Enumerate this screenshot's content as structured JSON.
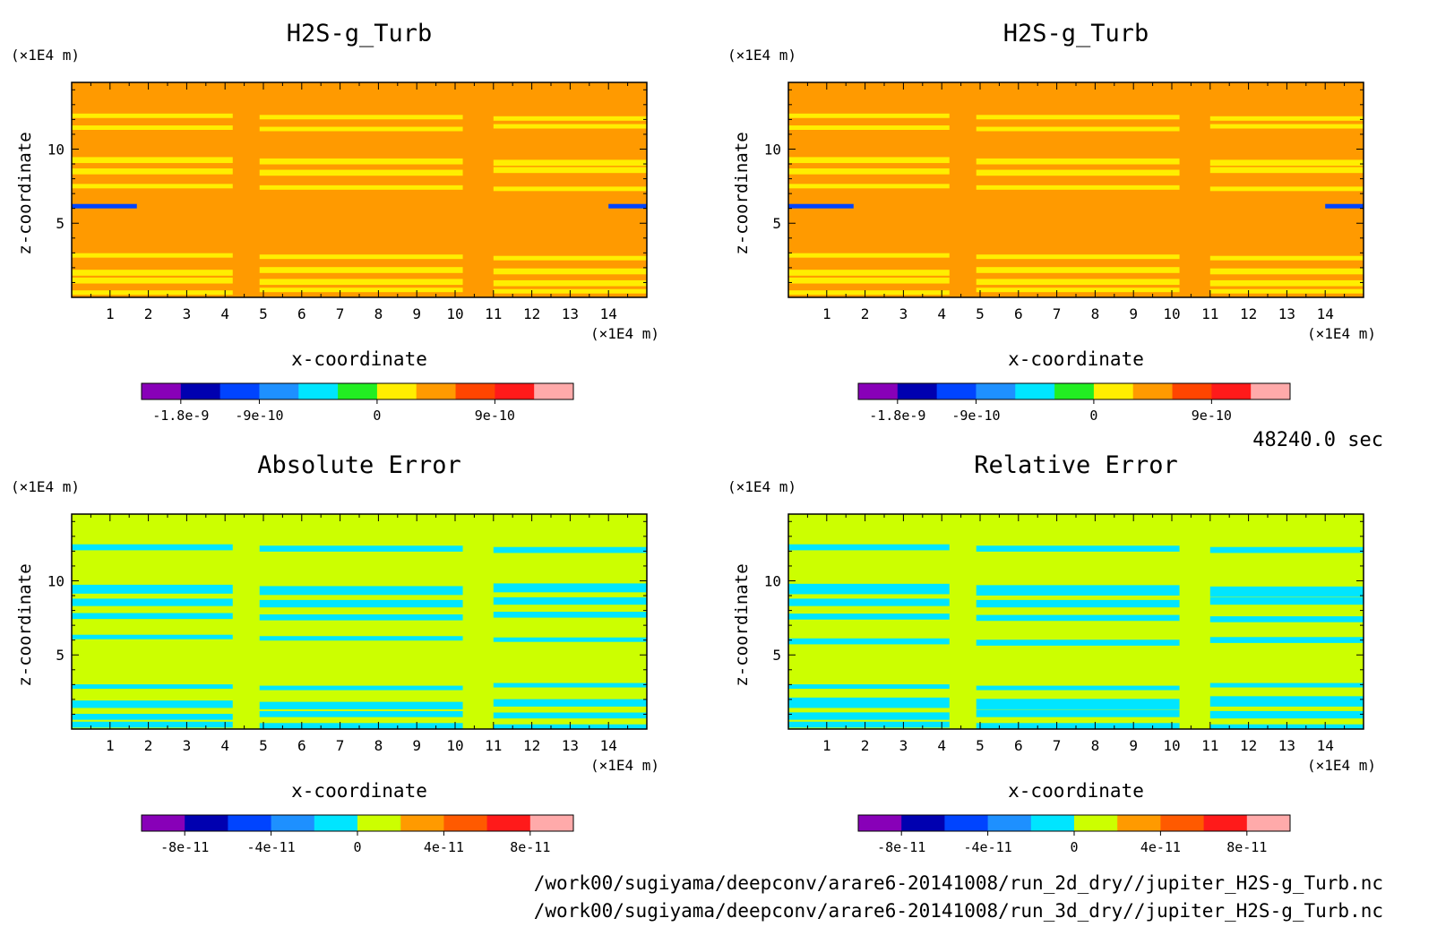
{
  "time_label": "48240.0 sec",
  "footer": {
    "line1": "/work00/sugiyama/deepconv/arare6-20141008/run_2d_dry//jupiter_H2S-g_Turb.nc",
    "line2": "/work00/sugiyama/deepconv/arare6-20141008/run_3d_dry//jupiter_H2S-g_Turb.nc"
  },
  "axis_text": {
    "xlabel": "x-coordinate",
    "ylabel": "z-coordinate",
    "x_unit": "(×1E4 m)",
    "y_unit": "(×1E4 m)"
  },
  "chart_data": [
    {
      "type": "heatmap",
      "title": "H2S-g_Turb",
      "xlabel": "x-coordinate",
      "ylabel": "z-coordinate",
      "x_unit": "(×1E4 m)",
      "y_unit": "(×1E4 m)",
      "xlim": [
        0,
        15
      ],
      "ylim": [
        0,
        14.5
      ],
      "xticks": [
        1,
        2,
        3,
        4,
        5,
        6,
        7,
        8,
        9,
        10,
        11,
        12,
        13,
        14
      ],
      "yticks": [
        5,
        10
      ],
      "background_color": "#ff9a00",
      "colorbar": {
        "colors": [
          "#8800b8",
          "#0000b0",
          "#0044ff",
          "#1e90ff",
          "#00e5ff",
          "#22ee22",
          "#ffee00",
          "#ff9a00",
          "#ff4500",
          "#ff1a1a",
          "#ffaaaa"
        ],
        "tick_labels": [
          "-1.8e-9",
          "-9e-10",
          "0",
          "9e-10"
        ],
        "tick_boundaries": [
          1,
          3,
          6,
          9
        ]
      },
      "regions": [
        {
          "label": "band",
          "color": "#ffee00",
          "rows": [
            [
              12.1,
              12.4
            ],
            [
              11.4,
              11.7
            ],
            [
              9.0,
              9.4
            ],
            [
              8.4,
              8.8
            ],
            [
              7.3,
              7.6
            ],
            [
              2.7,
              3.0
            ],
            [
              1.6,
              2.0
            ],
            [
              0.9,
              1.3
            ],
            [
              0.3,
              0.6
            ]
          ]
        },
        {
          "label": "low-anomaly",
          "color": "#0044ff",
          "rows": [
            [
              6.0,
              6.3
            ]
          ]
        }
      ]
    },
    {
      "type": "heatmap",
      "title": "H2S-g_Turb",
      "xlabel": "x-coordinate",
      "ylabel": "z-coordinate",
      "x_unit": "(×1E4 m)",
      "y_unit": "(×1E4 m)",
      "xlim": [
        0,
        15
      ],
      "ylim": [
        0,
        14.5
      ],
      "xticks": [
        1,
        2,
        3,
        4,
        5,
        6,
        7,
        8,
        9,
        10,
        11,
        12,
        13,
        14
      ],
      "yticks": [
        5,
        10
      ],
      "background_color": "#ff9a00",
      "colorbar": {
        "colors": [
          "#8800b8",
          "#0000b0",
          "#0044ff",
          "#1e90ff",
          "#00e5ff",
          "#22ee22",
          "#ffee00",
          "#ff9a00",
          "#ff4500",
          "#ff1a1a",
          "#ffaaaa"
        ],
        "tick_labels": [
          "-1.8e-9",
          "-9e-10",
          "0",
          "9e-10"
        ],
        "tick_boundaries": [
          1,
          3,
          6,
          9
        ]
      },
      "regions": [
        {
          "label": "band",
          "color": "#ffee00",
          "rows": [
            [
              12.1,
              12.4
            ],
            [
              11.4,
              11.7
            ],
            [
              9.0,
              9.4
            ],
            [
              8.4,
              8.8
            ],
            [
              7.3,
              7.6
            ],
            [
              2.7,
              3.0
            ],
            [
              1.6,
              2.0
            ],
            [
              0.9,
              1.3
            ],
            [
              0.3,
              0.6
            ]
          ]
        },
        {
          "label": "low-anomaly",
          "color": "#0044ff",
          "rows": [
            [
              6.0,
              6.3
            ]
          ]
        }
      ]
    },
    {
      "type": "heatmap",
      "title": "Absolute Error",
      "xlabel": "x-coordinate",
      "ylabel": "z-coordinate",
      "x_unit": "(×1E4 m)",
      "y_unit": "(×1E4 m)",
      "xlim": [
        0,
        15
      ],
      "ylim": [
        0,
        14.5
      ],
      "xticks": [
        1,
        2,
        3,
        4,
        5,
        6,
        7,
        8,
        9,
        10,
        11,
        12,
        13,
        14
      ],
      "yticks": [
        5,
        10
      ],
      "background_color": "#ccff00",
      "colorbar": {
        "colors": [
          "#8800b8",
          "#0000b0",
          "#0044ff",
          "#1e90ff",
          "#00e5ff",
          "#ccff00",
          "#ff9a00",
          "#ff5a00",
          "#ff1a1a",
          "#ffaaaa"
        ],
        "tick_labels": [
          "-8e-11",
          "-4e-11",
          "0",
          "4e-11",
          "8e-11"
        ],
        "tick_boundaries": [
          1,
          3,
          5,
          7,
          9
        ]
      },
      "regions": [
        {
          "label": "band",
          "color": "#00e5ff",
          "rows": [
            [
              12.0,
              12.4
            ],
            [
              9.2,
              9.8
            ],
            [
              8.4,
              8.9
            ],
            [
              7.5,
              7.9
            ],
            [
              6.0,
              6.3
            ],
            [
              2.8,
              3.1
            ],
            [
              1.5,
              2.0
            ],
            [
              0.8,
              1.2
            ],
            [
              0.1,
              0.5
            ]
          ]
        }
      ]
    },
    {
      "type": "heatmap",
      "title": "Relative Error",
      "xlabel": "x-coordinate",
      "ylabel": "z-coordinate",
      "x_unit": "(×1E4 m)",
      "y_unit": "(×1E4 m)",
      "xlim": [
        0,
        15
      ],
      "ylim": [
        0,
        14.5
      ],
      "xticks": [
        1,
        2,
        3,
        4,
        5,
        6,
        7,
        8,
        9,
        10,
        11,
        12,
        13,
        14
      ],
      "yticks": [
        5,
        10
      ],
      "background_color": "#ccff00",
      "colorbar": {
        "colors": [
          "#8800b8",
          "#0000b0",
          "#0044ff",
          "#1e90ff",
          "#00e5ff",
          "#ccff00",
          "#ff9a00",
          "#ff5a00",
          "#ff1a1a",
          "#ffaaaa"
        ],
        "tick_labels": [
          "-8e-11",
          "-4e-11",
          "0",
          "4e-11",
          "8e-11"
        ],
        "tick_boundaries": [
          1,
          3,
          5,
          7,
          9
        ]
      },
      "regions": [
        {
          "label": "band",
          "color": "#00e5ff",
          "rows": [
            [
              12.0,
              12.4
            ],
            [
              9.1,
              9.8
            ],
            [
              8.4,
              8.9
            ],
            [
              7.4,
              7.8
            ],
            [
              5.8,
              6.2
            ],
            [
              2.8,
              3.1
            ],
            [
              1.5,
              2.2
            ],
            [
              0.8,
              1.3
            ],
            [
              0.1,
              0.5
            ]
          ]
        }
      ]
    }
  ]
}
